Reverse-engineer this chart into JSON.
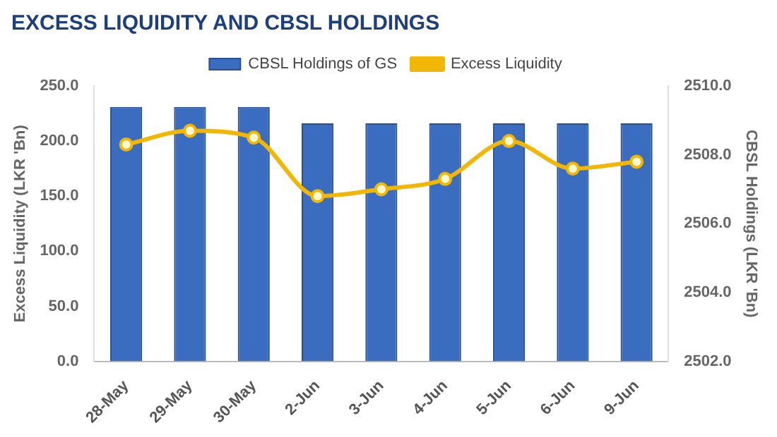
{
  "chart_data": {
    "type": "bar",
    "title": "EXCESS LIQUIDITY AND CBSL HOLDINGS",
    "ylabel": "Excess Liquidity (LKR 'Bn)",
    "y2label": "CBSL Holdings (LKR 'Bn)",
    "categories": [
      "28-May",
      "29-May",
      "30-May",
      "2-Jun",
      "3-Jun",
      "4-Jun",
      "5-Jun",
      "6-Jun",
      "9-Jun"
    ],
    "series": [
      {
        "name": "CBSL Holdings of GS",
        "color": "#3a6cc0",
        "values": [
          231,
          231,
          231,
          216,
          216,
          216,
          216,
          216,
          216
        ]
      },
      {
        "name": "Excess Liquidity",
        "type": "line",
        "axis": "y2",
        "color": "#f2b705",
        "values": [
          2508.3,
          2508.7,
          2508.5,
          2506.8,
          2507.0,
          2507.3,
          2508.4,
          2507.6,
          2507.8
        ]
      }
    ],
    "ylim": [
      0,
      250
    ],
    "yticks": [
      {
        "value": 0,
        "label": "0.0"
      },
      {
        "value": 50,
        "label": "50.0"
      },
      {
        "value": 100,
        "label": "100.0"
      },
      {
        "value": 150,
        "label": "150.0"
      },
      {
        "value": 200,
        "label": "200.0"
      },
      {
        "value": 250,
        "label": "250.0"
      }
    ],
    "y2lim": [
      2502,
      2510
    ],
    "y2ticks": [
      {
        "value": 2502,
        "label": "2502.0"
      },
      {
        "value": 2504,
        "label": "2504.0"
      },
      {
        "value": 2506,
        "label": "2506.0"
      },
      {
        "value": 2508,
        "label": "2508.0"
      },
      {
        "value": 2510,
        "label": "2510.0"
      }
    ],
    "legend": "top",
    "marker": "circle"
  }
}
